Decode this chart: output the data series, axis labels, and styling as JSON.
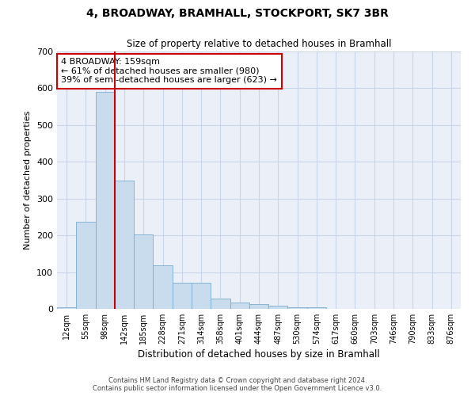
{
  "title": "4, BROADWAY, BRAMHALL, STOCKPORT, SK7 3BR",
  "subtitle": "Size of property relative to detached houses in Bramhall",
  "xlabel": "Distribution of detached houses by size in Bramhall",
  "ylabel": "Number of detached properties",
  "footer_line1": "Contains HM Land Registry data © Crown copyright and database right 2024.",
  "footer_line2": "Contains public sector information licensed under the Open Government Licence v3.0.",
  "bin_labels": [
    "12sqm",
    "55sqm",
    "98sqm",
    "142sqm",
    "185sqm",
    "228sqm",
    "271sqm",
    "314sqm",
    "358sqm",
    "401sqm",
    "444sqm",
    "487sqm",
    "530sqm",
    "574sqm",
    "617sqm",
    "660sqm",
    "703sqm",
    "746sqm",
    "790sqm",
    "833sqm",
    "876sqm"
  ],
  "bar_values": [
    5,
    237,
    590,
    348,
    202,
    118,
    72,
    72,
    28,
    18,
    12,
    8,
    5,
    5,
    0,
    0,
    0,
    0,
    0,
    0,
    0
  ],
  "bar_color": "#c9dced",
  "bar_edge_color": "#7aacd0",
  "grid_color": "#c8d4e8",
  "background_color": "#eaeff8",
  "vline_x_index": 2,
  "vline_color": "#cc0000",
  "annotation_text": "4 BROADWAY: 159sqm\n← 61% of detached houses are smaller (980)\n39% of semi-detached houses are larger (623) →",
  "annotation_box_edge": "#cc0000",
  "ylim": [
    0,
    700
  ],
  "yticks": [
    0,
    100,
    200,
    300,
    400,
    500,
    600,
    700
  ],
  "fig_width": 6.0,
  "fig_height": 5.0,
  "dpi": 100
}
